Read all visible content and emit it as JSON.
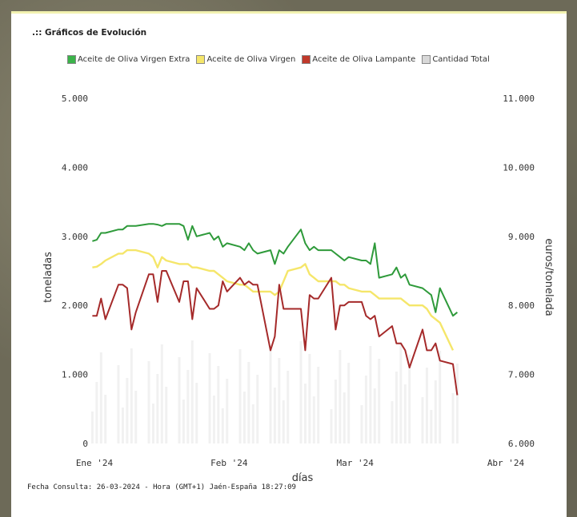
{
  "section_title": ".:: Gráficos de Evolución",
  "footer": "Fecha Consulta: 26-03-2024 - Hora (GMT+1) Jaén-España 18:27:09",
  "chart_data": {
    "type": "line",
    "xlabel": "días",
    "ylabel_left": "toneladas",
    "ylabel_right": "euros/tonelada",
    "ylim_left": [
      0,
      5000
    ],
    "ylim_right": [
      6000,
      11000
    ],
    "x_ticks": [
      "Ene '24",
      "Feb '24",
      "Mar '24",
      "Abr '24"
    ],
    "y_ticks_left": [
      "0",
      "1.000",
      "2.000",
      "3.000",
      "4.000",
      "5.000"
    ],
    "y_ticks_right": [
      "6.000",
      "7.000",
      "8.000",
      "9.000",
      "10.000",
      "11.000"
    ],
    "grid": false,
    "legend_position": "top",
    "x_range": [
      "2024-01-01",
      "2024-04-01"
    ],
    "series": [
      {
        "name": "Aceite de Oliva Virgen Extra",
        "axis": "right",
        "color": "#2e9a3a",
        "x": [
          "2024-01-02",
          "2024-01-03",
          "2024-01-04",
          "2024-01-05",
          "2024-01-08",
          "2024-01-09",
          "2024-01-10",
          "2024-01-11",
          "2024-01-12",
          "2024-01-15",
          "2024-01-16",
          "2024-01-17",
          "2024-01-18",
          "2024-01-19",
          "2024-01-22",
          "2024-01-23",
          "2024-01-24",
          "2024-01-25",
          "2024-01-26",
          "2024-01-29",
          "2024-01-30",
          "2024-01-31",
          "2024-02-01",
          "2024-02-02",
          "2024-02-05",
          "2024-02-06",
          "2024-02-07",
          "2024-02-08",
          "2024-02-09",
          "2024-02-12",
          "2024-02-13",
          "2024-02-14",
          "2024-02-15",
          "2024-02-16",
          "2024-02-19",
          "2024-02-20",
          "2024-02-21",
          "2024-02-22",
          "2024-02-23",
          "2024-02-26",
          "2024-02-27",
          "2024-02-28",
          "2024-02-29",
          "2024-03-01",
          "2024-03-04",
          "2024-03-05",
          "2024-03-06",
          "2024-03-07",
          "2024-03-08",
          "2024-03-11",
          "2024-03-12",
          "2024-03-13",
          "2024-03-14",
          "2024-03-15",
          "2024-03-18",
          "2024-03-19",
          "2024-03-20",
          "2024-03-21",
          "2024-03-22",
          "2024-03-25",
          "2024-03-26"
        ],
        "values": [
          8930,
          8950,
          9050,
          9050,
          9100,
          9100,
          9150,
          9150,
          9150,
          9180,
          9180,
          9170,
          9150,
          9180,
          9180,
          9150,
          8950,
          9150,
          9000,
          9050,
          8950,
          9000,
          8850,
          8900,
          8850,
          8800,
          8900,
          8800,
          8750,
          8800,
          8600,
          8800,
          8750,
          8850,
          9100,
          8900,
          8800,
          8850,
          8800,
          8800,
          8750,
          8700,
          8650,
          8700,
          8650,
          8650,
          8600,
          8900,
          8400,
          8450,
          8550,
          8400,
          8450,
          8300,
          8250,
          8200,
          8150,
          7900,
          8250,
          7850,
          7900
        ]
      },
      {
        "name": "Aceite de Oliva Virgen",
        "axis": "right",
        "color": "#f5e66a",
        "x": [
          "2024-01-02",
          "2024-01-03",
          "2024-01-04",
          "2024-01-05",
          "2024-01-08",
          "2024-01-09",
          "2024-01-10",
          "2024-01-11",
          "2024-01-12",
          "2024-01-15",
          "2024-01-16",
          "2024-01-17",
          "2024-01-18",
          "2024-01-19",
          "2024-01-22",
          "2024-01-23",
          "2024-01-24",
          "2024-01-25",
          "2024-01-26",
          "2024-01-29",
          "2024-01-30",
          "2024-01-31",
          "2024-02-01",
          "2024-02-02",
          "2024-02-05",
          "2024-02-06",
          "2024-02-07",
          "2024-02-08",
          "2024-02-09",
          "2024-02-12",
          "2024-02-13",
          "2024-02-14",
          "2024-02-15",
          "2024-02-16",
          "2024-02-19",
          "2024-02-20",
          "2024-02-21",
          "2024-02-22",
          "2024-02-23",
          "2024-02-26",
          "2024-02-27",
          "2024-02-28",
          "2024-02-29",
          "2024-03-01",
          "2024-03-04",
          "2024-03-05",
          "2024-03-06",
          "2024-03-07",
          "2024-03-08",
          "2024-03-11",
          "2024-03-12",
          "2024-03-13",
          "2024-03-14",
          "2024-03-15",
          "2024-03-18",
          "2024-03-19",
          "2024-03-20",
          "2024-03-21",
          "2024-03-22",
          "2024-03-25"
        ],
        "values": [
          8550,
          8560,
          8600,
          8650,
          8750,
          8750,
          8800,
          8800,
          8800,
          8750,
          8700,
          8550,
          8700,
          8650,
          8600,
          8600,
          8600,
          8550,
          8550,
          8500,
          8500,
          8450,
          8400,
          8350,
          8300,
          8300,
          8250,
          8200,
          8200,
          8200,
          8150,
          8200,
          8350,
          8500,
          8550,
          8600,
          8450,
          8400,
          8350,
          8350,
          8350,
          8300,
          8300,
          8250,
          8200,
          8200,
          8200,
          8150,
          8100,
          8100,
          8100,
          8100,
          8050,
          8000,
          8000,
          7950,
          7850,
          7800,
          7750,
          7350
        ]
      },
      {
        "name": "Aceite de Oliva Lampante",
        "axis": "right",
        "color": "#a52a2a",
        "x": [
          "2024-01-02",
          "2024-01-03",
          "2024-01-04",
          "2024-01-05",
          "2024-01-08",
          "2024-01-09",
          "2024-01-10",
          "2024-01-11",
          "2024-01-12",
          "2024-01-15",
          "2024-01-16",
          "2024-01-17",
          "2024-01-18",
          "2024-01-19",
          "2024-01-22",
          "2024-01-23",
          "2024-01-24",
          "2024-01-25",
          "2024-01-26",
          "2024-01-29",
          "2024-01-30",
          "2024-01-31",
          "2024-02-01",
          "2024-02-02",
          "2024-02-05",
          "2024-02-06",
          "2024-02-07",
          "2024-02-08",
          "2024-02-09",
          "2024-02-12",
          "2024-02-13",
          "2024-02-14",
          "2024-02-15",
          "2024-02-16",
          "2024-02-19",
          "2024-02-20",
          "2024-02-21",
          "2024-02-22",
          "2024-02-23",
          "2024-02-26",
          "2024-02-27",
          "2024-02-28",
          "2024-02-29",
          "2024-03-01",
          "2024-03-04",
          "2024-03-05",
          "2024-03-06",
          "2024-03-07",
          "2024-03-08",
          "2024-03-11",
          "2024-03-12",
          "2024-03-13",
          "2024-03-14",
          "2024-03-15",
          "2024-03-18",
          "2024-03-19",
          "2024-03-20",
          "2024-03-21",
          "2024-03-22",
          "2024-03-25",
          "2024-03-26"
        ],
        "values": [
          7850,
          7850,
          8100,
          7800,
          8300,
          8300,
          8250,
          7650,
          7900,
          8450,
          8450,
          8050,
          8500,
          8500,
          8050,
          8350,
          8350,
          7800,
          8250,
          7950,
          7950,
          8000,
          8350,
          8200,
          8400,
          8300,
          8350,
          8300,
          8300,
          7350,
          7550,
          8300,
          7950,
          7950,
          7950,
          7350,
          8150,
          8100,
          8100,
          8400,
          7650,
          8000,
          8000,
          8050,
          8050,
          7850,
          7800,
          7850,
          7550,
          7700,
          7450,
          7450,
          7350,
          7100,
          7650,
          7350,
          7350,
          7450,
          7200,
          7150,
          6700
        ]
      }
    ]
  },
  "legend": [
    {
      "label": "Aceite de Oliva Virgen Extra",
      "color": "#3bb34a",
      "checked": true
    },
    {
      "label": "Aceite de Oliva Virgen",
      "color": "#f5e66a",
      "checked": true
    },
    {
      "label": "Aceite de Oliva Lampante",
      "color": "#c0392b",
      "checked": true
    },
    {
      "label": "Cantidad Total",
      "color": "#d8d8d8",
      "checked": false
    }
  ]
}
